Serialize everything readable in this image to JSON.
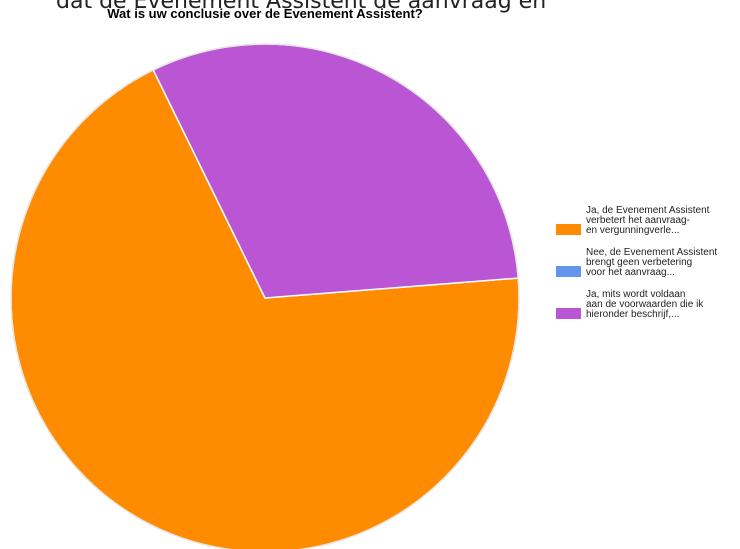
{
  "page": {
    "top_text": "dat de Evenement Assistent de aanvraag en",
    "chart_title": "Wat is uw conclusie over de Evenement Assistent?"
  },
  "chart_data": {
    "type": "pie",
    "title": "Wat is uw conclusie over de Evenement Assistent?",
    "legend_position": "right",
    "slices": [
      {
        "label": "Ja, de Evenement Assistent\nverbetert het aanvraag-\nen vergunningverle...",
        "value": 69,
        "color": "#ff8c00"
      },
      {
        "label": "Nee, de Evenement Assistent\nbrengt geen verbetering\nvoor het aanvraag...",
        "value": 0,
        "color": "#6495ed"
      },
      {
        "label": "Ja, mits wordt voldaan\naan de voorwaarden die ik\nhieronder beschrijf,...",
        "value": 31,
        "color": "#ba55d3"
      }
    ]
  }
}
